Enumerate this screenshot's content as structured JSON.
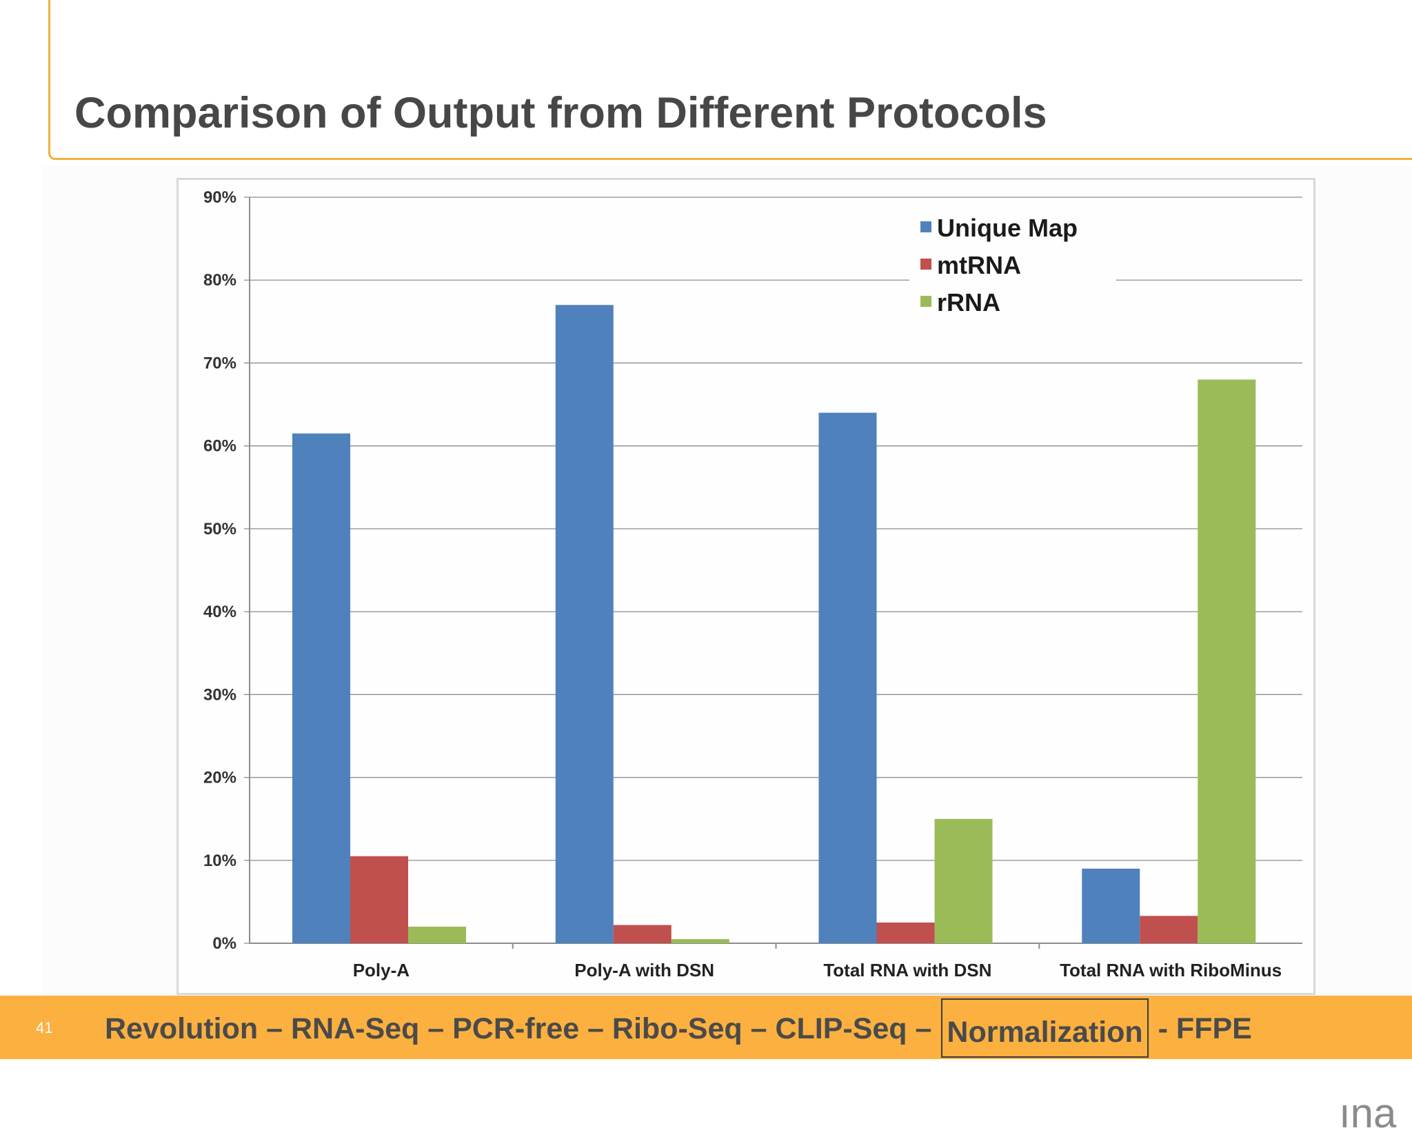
{
  "slide": {
    "title": "Comparison of Output from Different Protocols",
    "number": "41",
    "brand_fragment": "ına",
    "nav": {
      "before": "Revolution – RNA-Seq – PCR-free – Ribo-Seq – CLIP-Seq –",
      "current": "Normalization",
      "after": "- FFPE"
    }
  },
  "colors": {
    "accent": "#fbb040",
    "frame": "#f0b13c",
    "title": "#474747"
  },
  "chart_data": {
    "type": "bar",
    "categories": [
      "Poly-A",
      "Poly-A with DSN",
      "Total RNA with DSN",
      "Total RNA with RiboMinus"
    ],
    "series": [
      {
        "name": "Unique Map",
        "color": "#4f81bd",
        "values": [
          61.5,
          77,
          64,
          9
        ]
      },
      {
        "name": "mtRNA",
        "color": "#c0504d",
        "values": [
          10.5,
          2.2,
          2.5,
          3.3
        ]
      },
      {
        "name": "rRNA",
        "color": "#9bbb59",
        "values": [
          2,
          0.5,
          15,
          68
        ]
      }
    ],
    "yticks": [
      "0%",
      "10%",
      "20%",
      "30%",
      "40%",
      "50%",
      "60%",
      "70%",
      "80%",
      "90%"
    ],
    "ylim": [
      0,
      90
    ],
    "grid": true,
    "legend": "top-right"
  }
}
